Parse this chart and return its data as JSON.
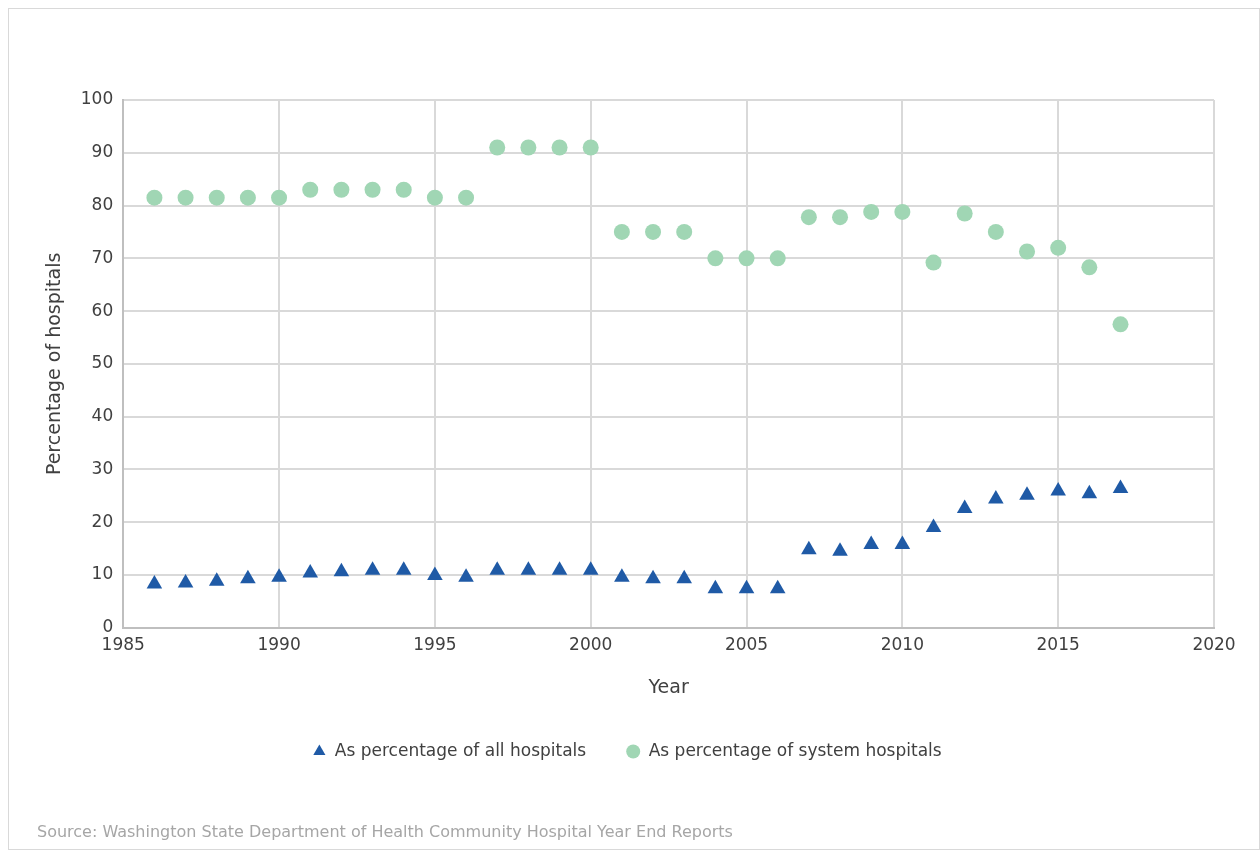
{
  "chart_data": {
    "type": "scatter",
    "xlabel": "Year",
    "ylabel": "Percentage of hospitals",
    "x": [
      1986,
      1987,
      1988,
      1989,
      1990,
      1991,
      1992,
      1993,
      1994,
      1995,
      1996,
      1997,
      1998,
      1999,
      2000,
      2001,
      2002,
      2003,
      2004,
      2005,
      2006,
      2007,
      2008,
      2009,
      2010,
      2011,
      2012,
      2013,
      2014,
      2015,
      2016,
      2017
    ],
    "series": [
      {
        "name": "As percentage of all hospitals",
        "color": "#1f5aa6",
        "marker": "triangle",
        "values": [
          8.3,
          8.5,
          8.8,
          9.3,
          9.6,
          10.4,
          10.6,
          10.9,
          10.9,
          9.9,
          9.6,
          10.9,
          10.9,
          10.9,
          10.9,
          9.6,
          9.3,
          9.3,
          7.4,
          7.4,
          7.4,
          14.8,
          14.5,
          15.8,
          15.8,
          19,
          22.6,
          24.4,
          25.1,
          25.9,
          25.4,
          26.4
        ]
      },
      {
        "name": "As percentage of system hospitals",
        "color": "#a0d6b4",
        "marker": "circle",
        "values": [
          81.5,
          81.5,
          81.5,
          81.5,
          81.5,
          83,
          83,
          83,
          83,
          81.5,
          81.5,
          91,
          91,
          91,
          91,
          75,
          75,
          75,
          70,
          70,
          70,
          77.8,
          77.8,
          78.8,
          78.8,
          69.2,
          78.5,
          75,
          71.3,
          72,
          68.3,
          57.5
        ]
      }
    ],
    "xlim": [
      1985,
      2020
    ],
    "xticks": [
      1985,
      1990,
      1995,
      2000,
      2005,
      2010,
      2015,
      2020
    ],
    "ylim": [
      0,
      100
    ],
    "yticks": [
      0,
      10,
      20,
      30,
      40,
      50,
      60,
      70,
      80,
      90,
      100
    ],
    "grid": true,
    "legend": "bottom",
    "annotations": [
      "Source: Washington State Department of Health Community Hospital Year End Reports"
    ]
  }
}
